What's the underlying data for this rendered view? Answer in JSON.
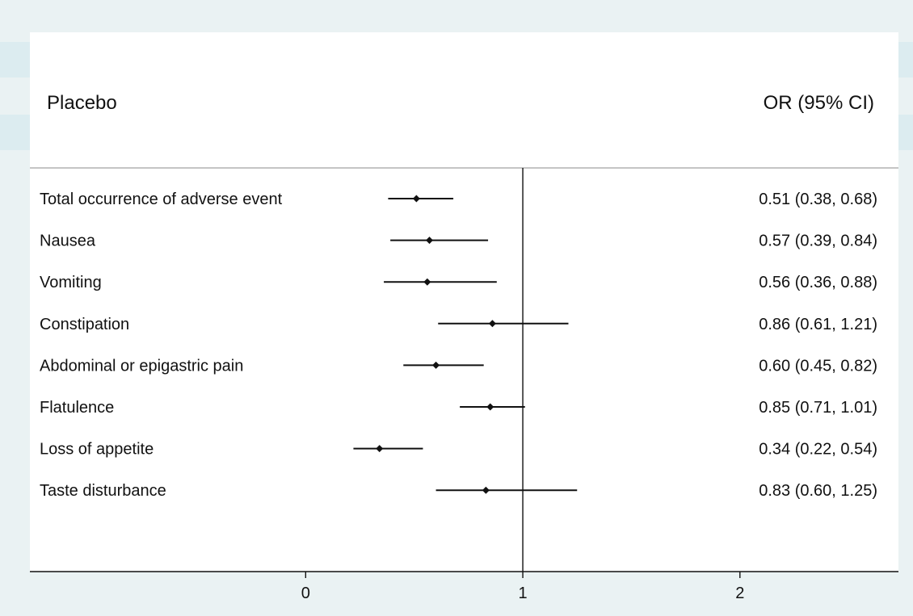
{
  "chart_data": {
    "type": "forest",
    "header_left": "Placebo",
    "header_right": "OR (95% CI)",
    "xlim": [
      -1.27,
      2.73
    ],
    "x_ticks": [
      0,
      1,
      2
    ],
    "reference_line": 1,
    "rows": [
      {
        "label": "Total occurrence of adverse event",
        "or": 0.51,
        "lo": 0.38,
        "hi": 0.68,
        "text": "0.51 (0.38, 0.68)"
      },
      {
        "label": "Nausea",
        "or": 0.57,
        "lo": 0.39,
        "hi": 0.84,
        "text": "0.57 (0.39, 0.84)"
      },
      {
        "label": "Vomiting",
        "or": 0.56,
        "lo": 0.36,
        "hi": 0.88,
        "text": "0.56 (0.36, 0.88)"
      },
      {
        "label": "Constipation",
        "or": 0.86,
        "lo": 0.61,
        "hi": 1.21,
        "text": "0.86 (0.61, 1.21)"
      },
      {
        "label": "Abdominal or epigastric pain",
        "or": 0.6,
        "lo": 0.45,
        "hi": 0.82,
        "text": "0.60 (0.45, 0.82)"
      },
      {
        "label": "Flatulence",
        "or": 0.85,
        "lo": 0.71,
        "hi": 1.01,
        "text": "0.85 (0.71, 1.01)"
      },
      {
        "label": "Loss of appetite",
        "or": 0.34,
        "lo": 0.22,
        "hi": 0.54,
        "text": "0.34 (0.22, 0.54)"
      },
      {
        "label": "Taste disturbance",
        "or": 0.83,
        "lo": 0.6,
        "hi": 1.25,
        "text": "0.83 (0.60, 1.25)"
      }
    ]
  },
  "colors": {
    "background": "#eaf2f3",
    "band": "#dcecf0",
    "plot": "#ffffff",
    "ink": "#111111",
    "axis_rule": "#888888"
  }
}
